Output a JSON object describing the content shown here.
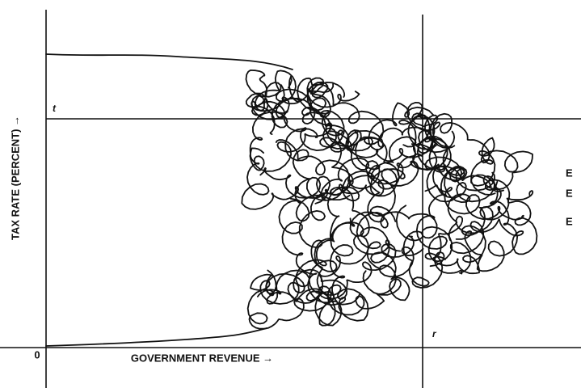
{
  "axes": {
    "y_label": "TAX RATE (PERCENT) →",
    "x_label": "GOVERNMENT REVENUE →",
    "origin": "0"
  },
  "markers": {
    "t": "t",
    "r": "r"
  },
  "equilibria": [
    "E",
    "E",
    "E"
  ]
}
